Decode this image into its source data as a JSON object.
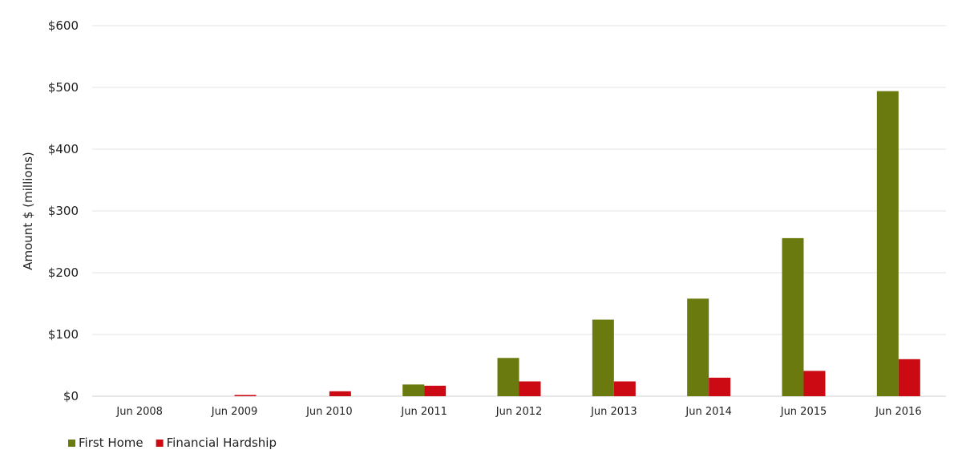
{
  "chart_data": {
    "type": "bar",
    "title": "",
    "xlabel": "",
    "ylabel": "Amount $ (millions)",
    "ylim": [
      0,
      600
    ],
    "yticks": [
      0,
      100,
      200,
      300,
      400,
      500,
      600
    ],
    "ytick_labels": [
      "$0",
      "$100",
      "$200",
      "$300",
      "$400",
      "$500",
      "$600"
    ],
    "grid": true,
    "legend_position": "bottom-left",
    "categories": [
      "Jun 2008",
      "Jun 2009",
      "Jun 2010",
      "Jun 2011",
      "Jun 2012",
      "Jun 2013",
      "Jun 2014",
      "Jun 2015",
      "Jun 2016"
    ],
    "series": [
      {
        "name": "First Home",
        "color": "#6b7a0f",
        "values": [
          0,
          0,
          0,
          19,
          62,
          124,
          158,
          256,
          494
        ]
      },
      {
        "name": "Financial Hardship",
        "color": "#cc0a14",
        "values": [
          0,
          2,
          8,
          17,
          24,
          24,
          30,
          41,
          60
        ]
      }
    ]
  }
}
